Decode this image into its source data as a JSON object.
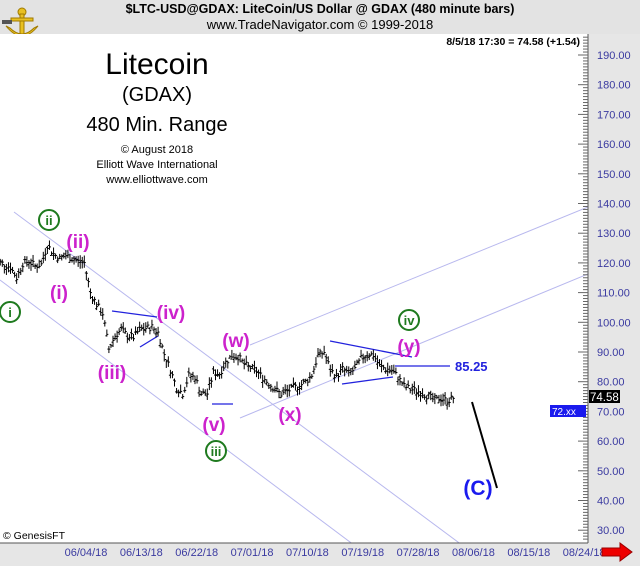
{
  "header": {
    "symbol_line": "$LTC-USD@GDAX:  LiteCoin/US Dollar @ GDAX  (480 minute bars)",
    "copyright_line": "www.TradeNavigator.com © 1999-2018",
    "logo": "gold-anchor-sextant-logo"
  },
  "quote": "8/5/18 17:30 = 74.58 (+1.54)",
  "title_block": {
    "title": "Litecoin",
    "exchange": "(GDAX)",
    "range": "480 Min. Range",
    "date": "© August 2018",
    "publisher": "Elliott Wave International",
    "website": "www.elliottwave.com"
  },
  "footer": {
    "copyright": "© GenesisFT"
  },
  "chart_data": {
    "type": "ohlc-bar",
    "title": "$LTC-USD@GDAX:  LiteCoin/US Dollar @ GDAX  (480 minute bars)",
    "ylim": [
      25,
      197
    ],
    "y_ticks": [
      "190.00",
      "180.00",
      "170.00",
      "160.00",
      "150.00",
      "140.00",
      "130.00",
      "120.00",
      "110.00",
      "100.00",
      "90.00",
      "80.00",
      "70.00",
      "60.00",
      "50.00",
      "40.00",
      "30.00"
    ],
    "x_ticks": [
      "06/04/18",
      "06/13/18",
      "06/22/18",
      "07/01/18",
      "07/10/18",
      "07/19/18",
      "07/28/18",
      "08/06/18",
      "08/15/18",
      "08/24/18"
    ],
    "x_range": [
      "05/23/18",
      "08/25/18"
    ],
    "last_price": "74.58",
    "last_price_2": "72.xx",
    "grid": false,
    "colors": {
      "bars": "#000000",
      "channel": "#b8b8ee",
      "trendline": "#2222dd",
      "minor_wave": "#cc22cc",
      "major_wave": "#1e7a1e",
      "target": "#1a1aee"
    },
    "series": [
      {
        "dates": [
          "05/23",
          "05/24",
          "05/25",
          "05/26",
          "05/27",
          "05/28",
          "05/29",
          "05/30",
          "05/31",
          "06/01",
          "06/02",
          "06/03",
          "06/04",
          "06/05",
          "06/06",
          "06/07",
          "06/08",
          "06/09",
          "06/10",
          "06/11",
          "06/12",
          "06/13",
          "06/14",
          "06/15",
          "06/16",
          "06/17",
          "06/18",
          "06/19",
          "06/20",
          "06/21",
          "06/22",
          "06/23",
          "06/24",
          "06/25",
          "06/26",
          "06/27",
          "06/28",
          "06/29",
          "06/30",
          "07/01",
          "07/02",
          "07/03",
          "07/04",
          "07/05",
          "07/06",
          "07/07",
          "07/08",
          "07/09",
          "07/10",
          "07/11",
          "07/12",
          "07/13",
          "07/14",
          "07/15",
          "07/16",
          "07/17",
          "07/18",
          "07/19",
          "07/20",
          "07/21",
          "07/22",
          "07/23",
          "07/24",
          "07/25",
          "07/26",
          "07/27",
          "07/28",
          "07/29",
          "07/30",
          "07/31",
          "08/01",
          "08/02",
          "08/03",
          "08/04",
          "08/05"
        ],
        "close": [
          120.6,
          119.5,
          118.5,
          115,
          119.8,
          120.5,
          119,
          119.5,
          126,
          123,
          121.5,
          122.5,
          121.5,
          120.5,
          120,
          110,
          106,
          103,
          91,
          95.5,
          97.5,
          95.5,
          95,
          97.5,
          98,
          98.4,
          96.5,
          89.3,
          84,
          78,
          76,
          82,
          81.5,
          76,
          76,
          83,
          82.7,
          86.5,
          88.8,
          88.5,
          85.8,
          84.7,
          83.5,
          81.4,
          79.5,
          77.5,
          75.8,
          76.8,
          77.9,
          78.6,
          80,
          82.3,
          88.8,
          90,
          84,
          81.8,
          84.2,
          82.8,
          84.2,
          87.7,
          89.3,
          89,
          85.3,
          84.3,
          83.9,
          81.5,
          78.5,
          77.5,
          76.9,
          76.2,
          75,
          73.6,
          74.5,
          73.5,
          74.58
        ]
      }
    ],
    "annotations": {
      "level_label": "85.25",
      "major_waves": [
        "i",
        "ii",
        "iii",
        "iv"
      ],
      "minor_waves": [
        "(i)",
        "(ii)",
        "(iii)",
        "(iv)",
        "(v)",
        "(w)",
        "(x)",
        "(y)"
      ],
      "target_wave": "(C)"
    }
  }
}
